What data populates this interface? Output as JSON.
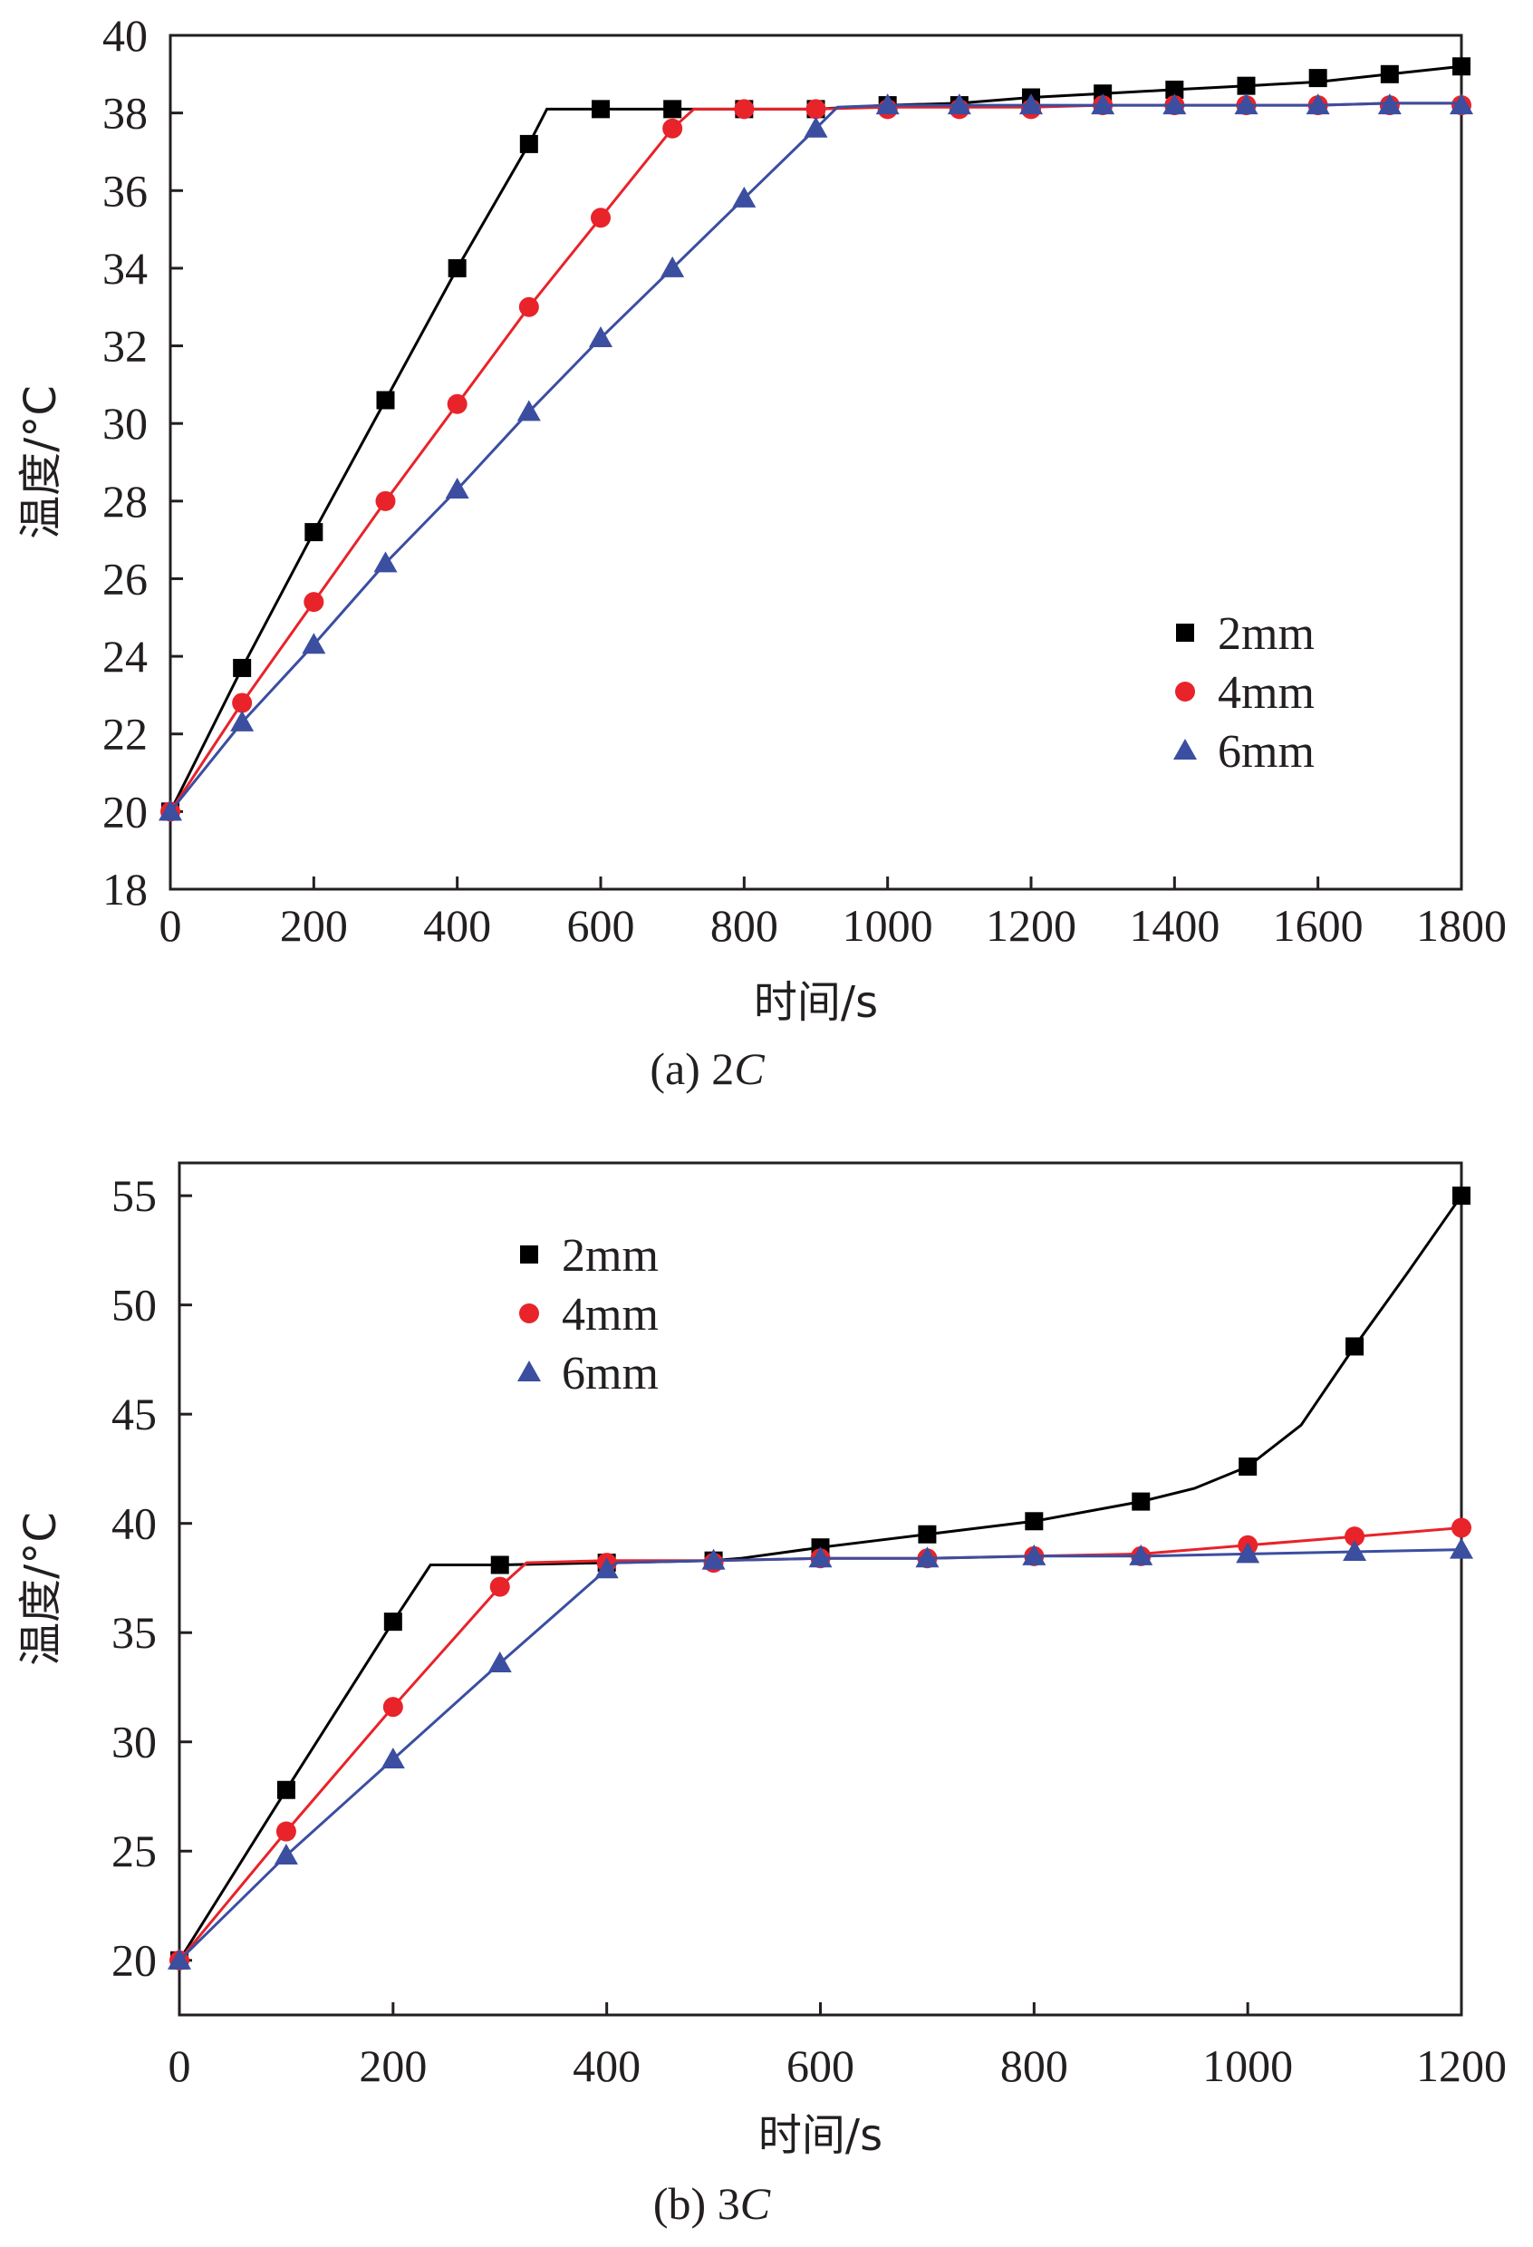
{
  "chart_data": [
    {
      "type": "line",
      "caption_prefix": "(a) 2",
      "caption_italic": "C",
      "xlabel": "时间/s",
      "ylabel": "温度/°C",
      "xlim": [
        0,
        1800
      ],
      "ylim": [
        18,
        40
      ],
      "xticks": [
        0,
        200,
        400,
        600,
        800,
        1000,
        1200,
        1400,
        1600,
        1800
      ],
      "yticks": [
        18,
        20,
        22,
        24,
        26,
        28,
        30,
        32,
        34,
        36,
        38,
        40
      ],
      "legend_position": "center-right",
      "series": [
        {
          "name": "2mm",
          "marker": "square",
          "color": "#000000",
          "x": [
            0,
            100,
            200,
            300,
            400,
            500,
            600,
            700,
            800,
            900,
            1000,
            1100,
            1200,
            1300,
            1400,
            1500,
            1600,
            1700,
            1800
          ],
          "y": [
            20.0,
            23.7,
            27.2,
            30.6,
            34.0,
            37.2,
            38.1,
            38.1,
            38.1,
            38.1,
            38.2,
            38.2,
            38.4,
            38.5,
            38.6,
            38.7,
            38.9,
            39.0,
            39.2
          ],
          "curve_x": [
            0,
            100,
            200,
            300,
            400,
            500,
            525,
            600,
            700,
            800,
            900,
            1000,
            1100,
            1200,
            1300,
            1400,
            1500,
            1600,
            1700,
            1800
          ],
          "curve_y": [
            20.0,
            23.7,
            27.2,
            30.6,
            34.0,
            37.2,
            38.1,
            38.1,
            38.1,
            38.1,
            38.1,
            38.2,
            38.25,
            38.4,
            38.5,
            38.6,
            38.7,
            38.8,
            39.0,
            39.2
          ]
        },
        {
          "name": "4mm",
          "marker": "circle",
          "color": "#e8232a",
          "x": [
            0,
            100,
            200,
            300,
            400,
            500,
            600,
            700,
            800,
            900,
            1000,
            1100,
            1200,
            1300,
            1400,
            1500,
            1600,
            1700,
            1800
          ],
          "y": [
            20.0,
            22.8,
            25.4,
            28.0,
            30.5,
            33.0,
            35.3,
            37.6,
            38.1,
            38.1,
            38.1,
            38.1,
            38.1,
            38.2,
            38.2,
            38.2,
            38.2,
            38.2,
            38.2
          ],
          "curve_x": [
            0,
            100,
            200,
            300,
            400,
            500,
            600,
            700,
            730,
            800,
            900,
            1000,
            1100,
            1200,
            1300,
            1400,
            1500,
            1600,
            1700,
            1800
          ],
          "curve_y": [
            20.0,
            22.8,
            25.4,
            28.0,
            30.5,
            33.0,
            35.3,
            37.6,
            38.1,
            38.1,
            38.1,
            38.15,
            38.15,
            38.15,
            38.2,
            38.2,
            38.2,
            38.2,
            38.25,
            38.25
          ]
        },
        {
          "name": "6mm",
          "marker": "triangle",
          "color": "#3b4ea0",
          "x": [
            0,
            100,
            200,
            300,
            400,
            500,
            600,
            700,
            800,
            900,
            1000,
            1100,
            1200,
            1300,
            1400,
            1500,
            1600,
            1700,
            1800
          ],
          "y": [
            20.0,
            22.3,
            24.3,
            26.4,
            28.3,
            30.3,
            32.2,
            34.0,
            35.8,
            37.6,
            38.2,
            38.2,
            38.2,
            38.2,
            38.2,
            38.2,
            38.2,
            38.2,
            38.2
          ],
          "curve_x": [
            0,
            100,
            200,
            300,
            400,
            500,
            600,
            700,
            800,
            900,
            930,
            1000,
            1100,
            1200,
            1300,
            1400,
            1500,
            1600,
            1700,
            1800
          ],
          "curve_y": [
            20.0,
            22.3,
            24.3,
            26.4,
            28.3,
            30.3,
            32.2,
            34.0,
            35.8,
            37.6,
            38.15,
            38.2,
            38.2,
            38.2,
            38.2,
            38.2,
            38.2,
            38.2,
            38.25,
            38.25
          ]
        }
      ]
    },
    {
      "type": "line",
      "caption_prefix": "(b) 3",
      "caption_italic": "C",
      "xlabel": "时间/s",
      "ylabel": "温度/°C",
      "xlim": [
        0,
        1200
      ],
      "ylim": [
        17.5,
        56.5
      ],
      "xticks": [
        0,
        200,
        400,
        600,
        800,
        1000,
        1200
      ],
      "yticks": [
        20,
        25,
        30,
        35,
        40,
        45,
        50,
        55
      ],
      "legend_position": "top-left",
      "series": [
        {
          "name": "2mm",
          "marker": "square",
          "color": "#000000",
          "x": [
            0,
            100,
            200,
            300,
            400,
            500,
            600,
            700,
            800,
            900,
            1000,
            1100,
            1200
          ],
          "y": [
            20.0,
            27.8,
            35.5,
            38.1,
            38.2,
            38.3,
            38.9,
            39.5,
            40.1,
            41.0,
            42.6,
            48.1,
            55.0
          ],
          "curve_x": [
            0,
            100,
            200,
            235,
            300,
            400,
            500,
            525,
            600,
            700,
            800,
            900,
            950,
            1000,
            1050,
            1100,
            1150,
            1200
          ],
          "curve_y": [
            20.0,
            27.8,
            35.5,
            38.1,
            38.1,
            38.2,
            38.3,
            38.4,
            38.9,
            39.5,
            40.1,
            41.0,
            41.6,
            42.6,
            44.5,
            48.1,
            51.5,
            55.0
          ]
        },
        {
          "name": "4mm",
          "marker": "circle",
          "color": "#e8232a",
          "x": [
            0,
            100,
            200,
            300,
            400,
            500,
            600,
            700,
            800,
            900,
            1000,
            1100,
            1200
          ],
          "y": [
            20.0,
            25.9,
            31.6,
            37.1,
            38.2,
            38.2,
            38.4,
            38.4,
            38.5,
            38.5,
            39.0,
            39.4,
            39.8
          ],
          "curve_x": [
            0,
            100,
            200,
            300,
            325,
            400,
            500,
            600,
            700,
            800,
            900,
            1000,
            1100,
            1200
          ],
          "curve_y": [
            20.0,
            25.9,
            31.6,
            37.1,
            38.2,
            38.3,
            38.3,
            38.4,
            38.4,
            38.5,
            38.6,
            39.0,
            39.4,
            39.8
          ]
        },
        {
          "name": "6mm",
          "marker": "triangle",
          "color": "#3b4ea0",
          "x": [
            0,
            100,
            200,
            300,
            400,
            500,
            600,
            700,
            800,
            900,
            1000,
            1100,
            1200
          ],
          "y": [
            20.0,
            24.8,
            29.2,
            33.6,
            37.9,
            38.3,
            38.4,
            38.4,
            38.5,
            38.5,
            38.6,
            38.7,
            38.8
          ],
          "curve_x": [
            0,
            100,
            200,
            300,
            400,
            410,
            500,
            600,
            700,
            800,
            900,
            1000,
            1100,
            1200
          ],
          "curve_y": [
            20.0,
            24.8,
            29.2,
            33.6,
            37.9,
            38.2,
            38.3,
            38.4,
            38.4,
            38.5,
            38.5,
            38.6,
            38.7,
            38.8
          ]
        }
      ]
    }
  ]
}
